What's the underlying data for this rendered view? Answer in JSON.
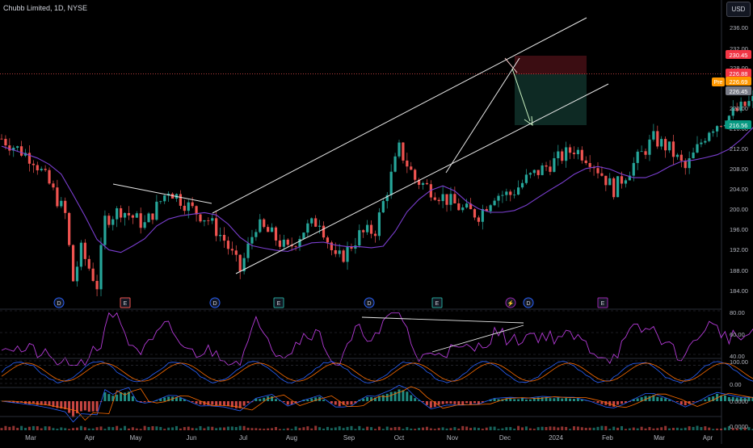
{
  "header": {
    "symbol_title": "Chubb Limited, 1D, NYSE",
    "currency": "USD"
  },
  "colors": {
    "background": "#000000",
    "up_candle": "#26a69a",
    "down_candle": "#ef5350",
    "moving_average": "#7b3fd1",
    "channel_lines": "#e8e8e8",
    "price_line": "#ef5350",
    "target_zone": "#0e2a24",
    "stop_zone": "#3b0d12",
    "rsi_line": "#b33ad6",
    "stoch_k": "#2962ff",
    "stoch_d": "#ff6d00",
    "macd_line": "#2962ff",
    "signal_line": "#ff6d00"
  },
  "price_axis": {
    "ticks": [
      "236.00",
      "232.00",
      "228.00",
      "220.00",
      "216.00",
      "212.00",
      "208.00",
      "204.00",
      "200.00",
      "196.00",
      "192.00",
      "188.00",
      "184.00"
    ],
    "labels": {
      "high_marker": "230.45",
      "last_price": "226.88",
      "pre_badge": "Pre",
      "pre_price": "226.69",
      "prev_price": "226.45",
      "target_price": "216.56"
    }
  },
  "indicator_axes": {
    "rsi": [
      "80.00",
      "60.00",
      "40.00"
    ],
    "stoch": [
      "100.00",
      "0.00"
    ],
    "macd": [
      "0.0000"
    ],
    "volume": [
      "0.0000"
    ]
  },
  "time_axis": [
    "Mar",
    "Apr",
    "May",
    "Jun",
    "Jul",
    "Aug",
    "Sep",
    "Oct",
    "Nov",
    "Dec",
    "2024",
    "Feb",
    "Mar",
    "Apr"
  ],
  "event_markers": [
    "D",
    "E",
    "D",
    "E",
    "D",
    "E",
    "⚡",
    "D",
    "E"
  ],
  "chart_data": {
    "type": "candlestick",
    "title": "Chubb Limited, 1D, NYSE",
    "ylim": [
      182,
      238
    ],
    "x": [
      "Feb",
      "Mar",
      "Apr",
      "May",
      "Jun",
      "Jul",
      "Aug",
      "Sep",
      "Oct",
      "Nov",
      "Dec"
    ],
    "series": [
      {
        "close": [
          212.5,
          189.0,
          198.0,
          200.5,
          190.5,
          192.0,
          204.0,
          212.0,
          206.0,
          218.0,
          226.88
        ]
      },
      {
        "name": "moving average",
        "values": [
          214.0,
          199.0,
          195.5,
          199.5,
          195.0,
          193.0,
          198.5,
          203.0,
          207.0,
          213.0,
          220.0
        ]
      }
    ],
    "last_close": 226.88,
    "recent_high": 230.45,
    "target": 216.56,
    "indicators": {
      "rsi_range": [
        40,
        80
      ],
      "stochastic_range": [
        0,
        100
      ],
      "macd_zero": 0.0
    }
  }
}
